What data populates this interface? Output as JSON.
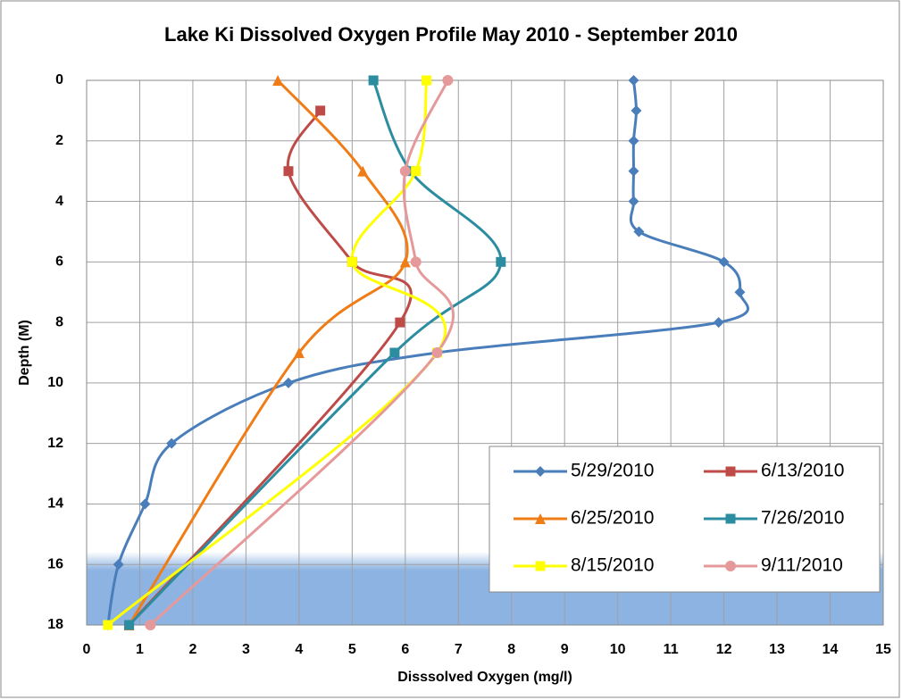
{
  "chart_data": {
    "type": "line",
    "title": "Lake Ki Dissolved Oxygen Profile  May 2010 - September 2010",
    "x_label": "Disssolved Oxygen (mg/l)",
    "y_label": "Depth (M)",
    "xlim": [
      0,
      15
    ],
    "xticks": [
      0,
      1,
      2,
      3,
      4,
      5,
      6,
      7,
      8,
      9,
      10,
      11,
      12,
      13,
      14,
      15
    ],
    "ylim": [
      0,
      18
    ],
    "yticks": [
      0,
      2,
      4,
      6,
      8,
      10,
      12,
      14,
      16,
      18
    ],
    "y_inverted": true,
    "grid": true,
    "smooth": true,
    "series": [
      {
        "name": "5/29/2010",
        "color": "#4a7ebb",
        "marker": "diamond",
        "x": [
          10.3,
          10.35,
          10.3,
          10.3,
          10.3,
          10.4,
          12,
          12.3,
          11.9,
          6.6,
          3.8,
          1.6,
          1.1,
          0.6,
          0.4
        ],
        "y": [
          0,
          1,
          2,
          3,
          4,
          5,
          6,
          7,
          8,
          9,
          10,
          12,
          14,
          16,
          18
        ]
      },
      {
        "name": "6/13/2010",
        "color": "#be4b48",
        "marker": "square",
        "x": [
          4.4,
          3.8,
          5,
          5.9,
          0.8
        ],
        "y": [
          1,
          3,
          6,
          8,
          18
        ]
      },
      {
        "name": "6/25/2010",
        "color": "#f07c16",
        "marker": "triangle",
        "x": [
          3.6,
          5.2,
          6,
          4,
          0.8
        ],
        "y": [
          0,
          3,
          6,
          9,
          18
        ]
      },
      {
        "name": "7/26/2010",
        "color": "#2c8ca0",
        "marker": "square",
        "x": [
          5.4,
          6.1,
          7.8,
          5.8,
          0.8
        ],
        "y": [
          0,
          3,
          6,
          9,
          18
        ]
      },
      {
        "name": "8/15/2010",
        "color": "#ffff00",
        "marker": "square",
        "x": [
          6.4,
          6.2,
          5,
          6.6,
          0.4
        ],
        "y": [
          0,
          3,
          6,
          9,
          18
        ]
      },
      {
        "name": "9/11/2010",
        "color": "#e6999a",
        "marker": "circle",
        "x": [
          6.8,
          6,
          6.2,
          6.6,
          1.2
        ],
        "y": [
          0,
          3,
          6,
          9,
          18
        ]
      }
    ]
  }
}
